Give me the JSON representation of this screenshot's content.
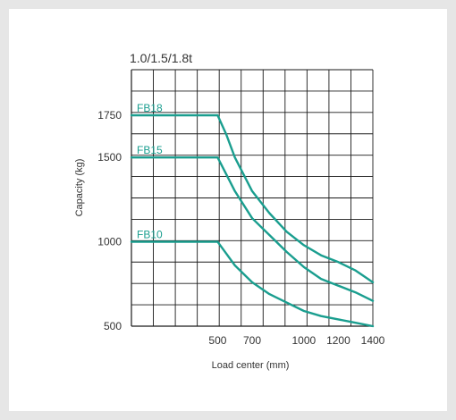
{
  "chart_data": {
    "type": "line",
    "title": "1.0/1.5/1.8t",
    "xlabel": "Load center (mm)",
    "ylabel": "Capacity (kg)",
    "x_ticks": [
      500,
      700,
      1000,
      1200,
      1400
    ],
    "y_ticks": [
      500,
      1000,
      1500,
      1750
    ],
    "grid": true,
    "series": [
      {
        "name": "FB18",
        "x": [
          0,
          500,
          550,
          600,
          700,
          800,
          900,
          1000,
          1100,
          1200,
          1300,
          1400
        ],
        "y": [
          1750,
          1750,
          1636,
          1500,
          1300,
          1170,
          1060,
          980,
          920,
          880,
          830,
          760
        ]
      },
      {
        "name": "FB15",
        "x": [
          0,
          500,
          550,
          600,
          700,
          800,
          900,
          1000,
          1100,
          1200,
          1300,
          1400
        ],
        "y": [
          1500,
          1500,
          1400,
          1300,
          1140,
          1040,
          940,
          850,
          780,
          740,
          700,
          650
        ]
      },
      {
        "name": "FB10",
        "x": [
          0,
          500,
          550,
          600,
          700,
          800,
          900,
          1000,
          1100,
          1200,
          1300,
          1400
        ],
        "y": [
          1000,
          1000,
          930,
          860,
          760,
          690,
          640,
          590,
          560,
          540,
          520,
          500
        ]
      }
    ],
    "colors": {
      "series": "#1a9e8f",
      "grid": "#1a1a1a",
      "text": "#333333"
    }
  }
}
